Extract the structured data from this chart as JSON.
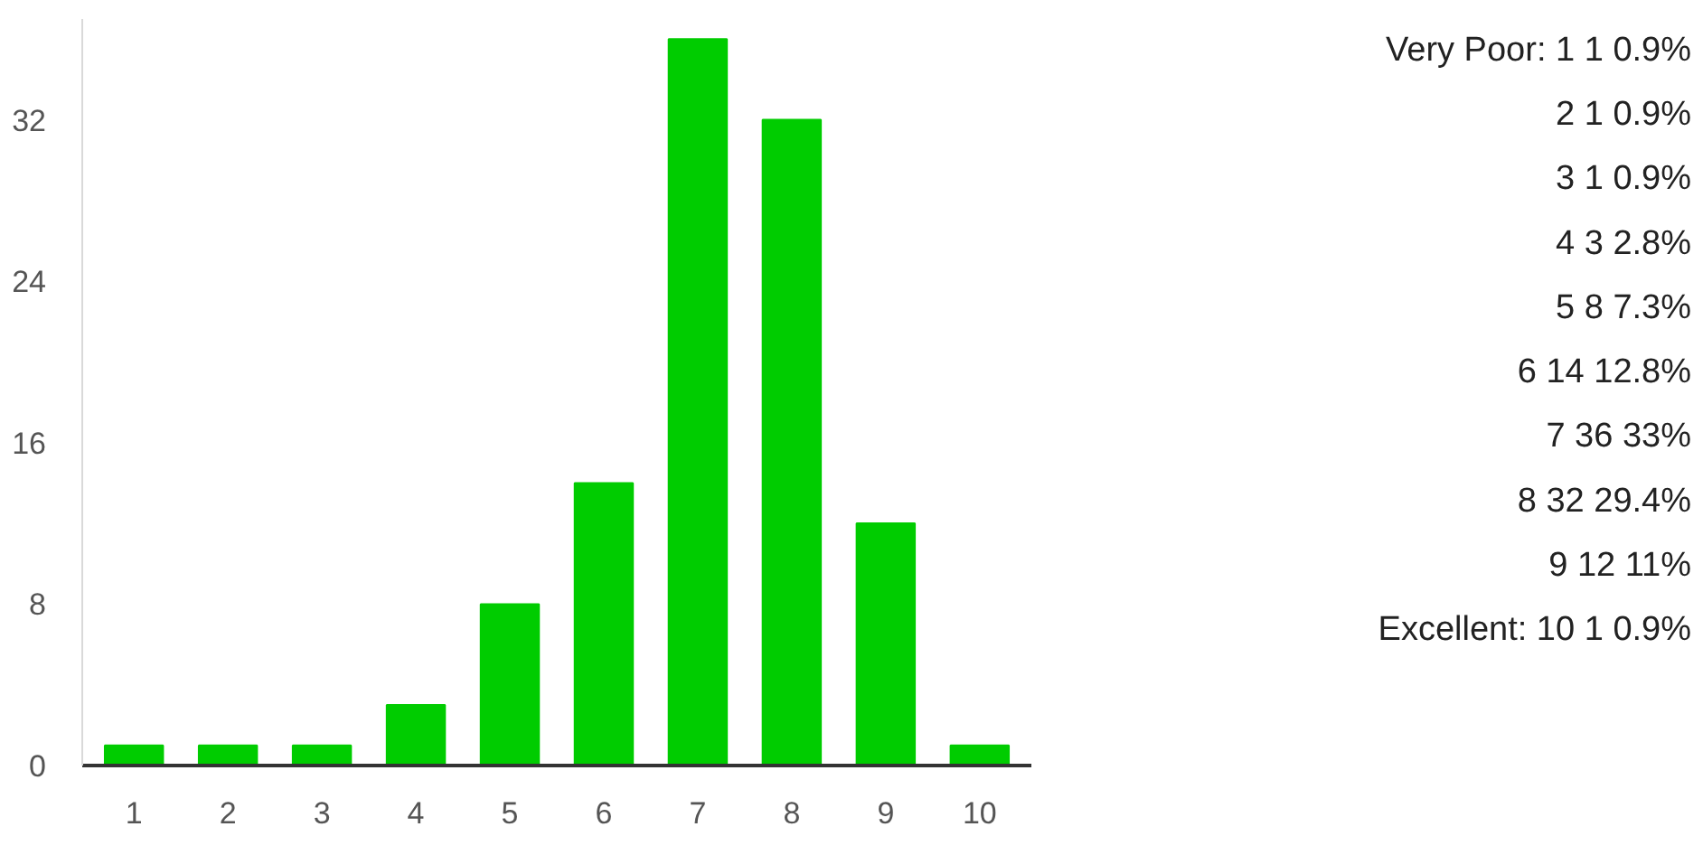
{
  "chart_data": [
    {
      "type": "bar",
      "categories": [
        "1",
        "2",
        "3",
        "4",
        "5",
        "6",
        "7",
        "8",
        "9",
        "10"
      ],
      "values": [
        1,
        1,
        1,
        3,
        8,
        14,
        36,
        32,
        12,
        1
      ],
      "color": "#00cc00",
      "ylim": [
        0,
        37
      ],
      "yticks": [
        0,
        8,
        16,
        24,
        32
      ]
    },
    {
      "type": "other",
      "annotations": [
        "Very Poor: 1 1 0.9%",
        "2 1 0.9%",
        "3 1 0.9%",
        "4 3 2.8%",
        "5 8 7.3%",
        "6 14 12.8%",
        "7 36 33%",
        "8 32 29.4%",
        "9 12 11%",
        "Excellent: 10 1 0.9%"
      ]
    }
  ]
}
